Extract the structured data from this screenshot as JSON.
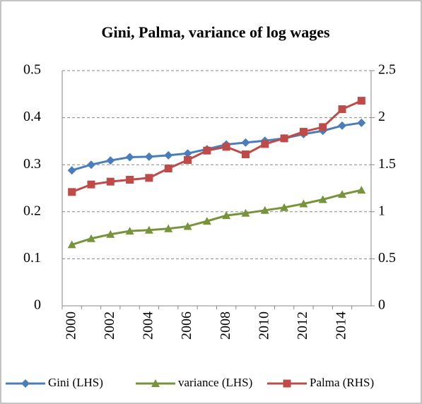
{
  "chart_data": {
    "type": "line",
    "title": "Gini, Palma, variance of log wages",
    "categories": [
      "2000",
      null,
      "2002",
      null,
      "2004",
      null,
      "2006",
      null,
      "2008",
      null,
      "2010",
      null,
      "2012",
      null,
      "2014",
      null
    ],
    "series": [
      {
        "name": "Gini (LHS)",
        "color": "#4a7ebb",
        "marker": "diamond",
        "values": [
          0.288,
          0.3,
          0.309,
          0.316,
          0.317,
          0.32,
          0.324,
          0.333,
          0.343,
          0.347,
          0.351,
          0.356,
          0.365,
          0.372,
          0.383,
          0.389
        ]
      },
      {
        "name": "variance (LHS)",
        "color": "#77933c",
        "marker": "triangle",
        "values": [
          0.13,
          0.143,
          0.152,
          0.159,
          0.161,
          0.164,
          0.169,
          0.18,
          0.192,
          0.197,
          0.203,
          0.209,
          0.217,
          0.226,
          0.237,
          0.246
        ]
      },
      {
        "name": "Palma (RHS)",
        "color": "#be4b48",
        "marker": "square",
        "axis": "y2",
        "values": [
          1.21,
          1.29,
          1.32,
          1.34,
          1.36,
          1.46,
          1.55,
          1.65,
          1.69,
          1.61,
          1.72,
          1.78,
          1.85,
          1.9,
          2.09,
          2.18
        ]
      }
    ],
    "ylim": [
      0,
      0.5
    ],
    "yticks": [
      0,
      0.1,
      0.2,
      0.3,
      0.4,
      0.5
    ],
    "y2lim": [
      0,
      2.5
    ],
    "y2ticks": [
      0,
      0.5,
      1,
      1.5,
      2,
      2.5
    ],
    "grid": true,
    "legend": "bottom"
  }
}
